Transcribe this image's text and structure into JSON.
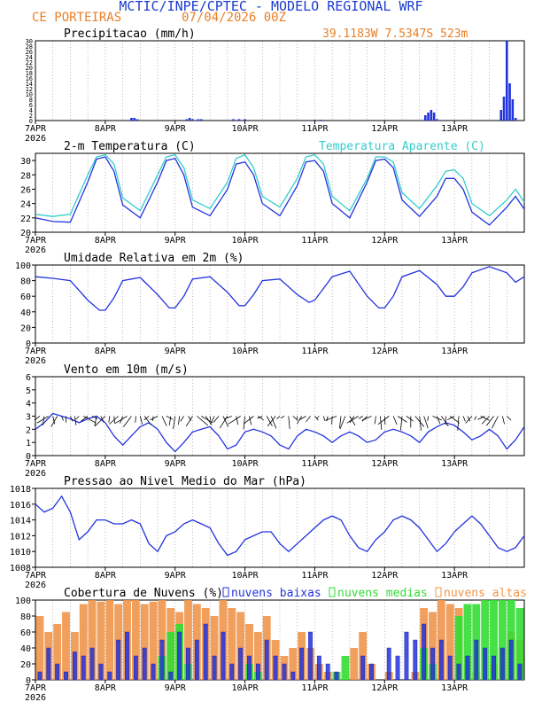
{
  "header": {
    "title": "MCTIC/INPE/CPTEC - MODELO REGIONAL WRF",
    "location": "CE PORTEIRAS",
    "run": "07/04/2026 00Z",
    "coords": "39.1183W 7.5347S 523m"
  },
  "colors": {
    "blue": "#2233dd",
    "cyan": "#33cccc",
    "orange": "#f0954a",
    "green": "#33dd33",
    "title_blue": "#1a3ccf",
    "orange_text": "#e87f28"
  },
  "x_axis": {
    "ticks": [
      "7APR",
      "8APR",
      "9APR",
      "10APR",
      "11APR",
      "12APR",
      "13APR"
    ],
    "year": "2026",
    "start": "2026-04-07 00Z",
    "end": "2026-04-14 00Z"
  },
  "chart_data": [
    {
      "type": "bar",
      "title": "Precipitacao (mm/h)",
      "ylim": [
        0,
        30
      ],
      "unit": "mm/h",
      "times_h": [
        33,
        34,
        35,
        52,
        53,
        54,
        56,
        57,
        68,
        70,
        72,
        96,
        98,
        134,
        135,
        136,
        137,
        138,
        160,
        161,
        162,
        163,
        164,
        165
      ],
      "values": [
        1,
        1,
        0.5,
        0.5,
        1,
        0.5,
        0.5,
        0.5,
        0.5,
        0.5,
        0.5,
        0.3,
        0.3,
        2,
        3,
        4,
        3,
        0.5,
        4,
        9,
        30,
        14,
        8,
        1
      ]
    },
    {
      "type": "line",
      "title": "2-m Temperatura (C)",
      "ylim": [
        20,
        31
      ],
      "yticks": [
        20,
        22,
        24,
        26,
        28,
        30
      ],
      "series": [
        {
          "name": "",
          "color": "blue",
          "x": [
            0,
            6,
            12,
            18,
            21,
            24,
            27,
            30,
            36,
            42,
            45,
            48,
            51,
            54,
            60,
            66,
            69,
            72,
            75,
            78,
            84,
            90,
            93,
            96,
            99,
            102,
            108,
            114,
            117,
            120,
            123,
            126,
            132,
            138,
            141,
            144,
            147,
            150,
            156,
            162,
            165,
            168
          ],
          "y": [
            22.0,
            21.5,
            21.4,
            27.0,
            30.2,
            30.5,
            28.5,
            23.8,
            22.0,
            27.0,
            30.0,
            30.3,
            28.0,
            23.5,
            22.3,
            26.0,
            29.5,
            29.8,
            28.0,
            24.0,
            22.3,
            26.5,
            29.8,
            30.0,
            28.5,
            24.0,
            22.0,
            27.0,
            30.0,
            30.2,
            29.0,
            24.5,
            22.2,
            25.0,
            27.5,
            27.5,
            26.0,
            22.8,
            21.0,
            23.5,
            25.0,
            23.2
          ]
        },
        {
          "name": "Temperatura Aparente (C)",
          "color": "cyan",
          "x": [
            0,
            6,
            12,
            18,
            21,
            24,
            27,
            30,
            36,
            42,
            45,
            48,
            51,
            54,
            60,
            66,
            69,
            72,
            75,
            78,
            84,
            90,
            93,
            96,
            99,
            102,
            108,
            114,
            117,
            120,
            123,
            126,
            132,
            138,
            141,
            144,
            147,
            150,
            156,
            162,
            165,
            168
          ],
          "y": [
            22.5,
            22.2,
            22.5,
            28.0,
            30.5,
            30.8,
            29.5,
            24.8,
            23.0,
            28.0,
            30.5,
            30.8,
            29.0,
            24.5,
            23.3,
            27.0,
            30.3,
            30.8,
            29.0,
            25.0,
            23.5,
            27.5,
            30.5,
            30.8,
            29.5,
            25.0,
            23.0,
            27.5,
            30.5,
            30.5,
            29.8,
            25.5,
            23.3,
            26.5,
            28.5,
            28.7,
            27.5,
            24.0,
            22.3,
            24.5,
            26.0,
            24.2
          ]
        }
      ]
    },
    {
      "type": "line",
      "title": "Umidade Relativa em 2m (%)",
      "ylim": [
        0,
        100
      ],
      "yticks": [
        0,
        20,
        40,
        60,
        80,
        100
      ],
      "series": [
        {
          "name": "",
          "color": "blue",
          "x": [
            0,
            6,
            12,
            18,
            22,
            24,
            27,
            30,
            36,
            42,
            46,
            48,
            51,
            54,
            60,
            66,
            70,
            72,
            75,
            78,
            84,
            90,
            94,
            96,
            99,
            102,
            108,
            114,
            118,
            120,
            123,
            126,
            132,
            138,
            141,
            144,
            147,
            150,
            156,
            162,
            165,
            168
          ],
          "y": [
            85,
            83,
            80,
            55,
            42,
            42,
            58,
            80,
            84,
            62,
            45,
            45,
            60,
            82,
            85,
            65,
            48,
            48,
            62,
            80,
            82,
            62,
            52,
            55,
            70,
            85,
            92,
            60,
            45,
            45,
            60,
            85,
            93,
            75,
            60,
            60,
            72,
            90,
            98,
            90,
            78,
            85
          ]
        }
      ]
    },
    {
      "type": "line",
      "title": "Vento em 10m (m/s)",
      "ylim": [
        0,
        6
      ],
      "yticks": [
        0,
        1,
        2,
        3,
        4,
        5,
        6
      ],
      "series": [
        {
          "name": "",
          "color": "blue",
          "x": [
            0,
            3,
            6,
            9,
            12,
            15,
            18,
            21,
            24,
            27,
            30,
            33,
            36,
            39,
            42,
            45,
            48,
            51,
            54,
            57,
            60,
            63,
            66,
            69,
            72,
            75,
            78,
            81,
            84,
            87,
            90,
            93,
            96,
            99,
            102,
            105,
            108,
            111,
            114,
            117,
            120,
            123,
            126,
            129,
            132,
            135,
            138,
            141,
            144,
            147,
            150,
            153,
            156,
            159,
            162,
            165,
            168
          ],
          "y": [
            2.0,
            2.5,
            3.2,
            3.0,
            2.8,
            2.5,
            2.8,
            3.0,
            2.5,
            1.5,
            0.8,
            1.5,
            2.2,
            2.5,
            2.0,
            1.0,
            0.3,
            1.0,
            1.8,
            2.0,
            2.2,
            1.5,
            0.5,
            0.8,
            1.8,
            2.0,
            1.8,
            1.5,
            0.8,
            0.5,
            1.5,
            2.0,
            1.8,
            1.5,
            1.0,
            1.5,
            1.8,
            1.5,
            1.0,
            1.2,
            1.8,
            2.0,
            1.8,
            1.5,
            1.0,
            1.8,
            2.2,
            2.5,
            2.3,
            1.8,
            1.2,
            1.5,
            2.0,
            1.5,
            0.5,
            1.2,
            2.2
          ]
        }
      ],
      "barb_level": 3
    },
    {
      "type": "line",
      "title": "Pressao ao Nivel Medio do Mar (hPa)",
      "ylim": [
        1008,
        1018
      ],
      "yticks": [
        1008,
        1010,
        1012,
        1014,
        1016,
        1018
      ],
      "series": [
        {
          "name": "",
          "color": "blue",
          "x": [
            0,
            3,
            6,
            9,
            12,
            15,
            18,
            21,
            24,
            27,
            30,
            33,
            36,
            39,
            42,
            45,
            48,
            51,
            54,
            57,
            60,
            63,
            66,
            69,
            72,
            75,
            78,
            81,
            84,
            87,
            90,
            93,
            96,
            99,
            102,
            105,
            108,
            111,
            114,
            117,
            120,
            123,
            126,
            129,
            132,
            135,
            138,
            141,
            144,
            147,
            150,
            153,
            156,
            159,
            162,
            165,
            168
          ],
          "y": [
            1016.0,
            1015.0,
            1015.5,
            1017.0,
            1015.0,
            1011.5,
            1012.5,
            1014.0,
            1014.0,
            1013.5,
            1013.5,
            1014.0,
            1013.5,
            1011.0,
            1010.0,
            1012.0,
            1012.5,
            1013.5,
            1014.0,
            1013.5,
            1013.0,
            1011.0,
            1009.5,
            1010.0,
            1011.5,
            1012.0,
            1012.5,
            1012.5,
            1011.0,
            1010.0,
            1011.0,
            1012.0,
            1013.0,
            1014.0,
            1014.5,
            1014.0,
            1012.0,
            1010.5,
            1010.0,
            1011.5,
            1012.5,
            1014.0,
            1014.5,
            1014.0,
            1013.0,
            1011.5,
            1010.0,
            1011.0,
            1012.5,
            1013.5,
            1014.5,
            1013.5,
            1012.0,
            1010.5,
            1010.0,
            1010.5,
            1012.0
          ]
        }
      ]
    },
    {
      "type": "bar",
      "title": "Cobertura de Nuvens (%)",
      "ylim": [
        0,
        100
      ],
      "yticks": [
        0,
        20,
        40,
        60,
        80,
        100
      ],
      "legend": [
        "nuvens baixas",
        "nuvens medias",
        "nuvens altas"
      ],
      "hours": [
        0,
        3,
        6,
        9,
        12,
        15,
        18,
        21,
        24,
        27,
        30,
        33,
        36,
        39,
        42,
        45,
        48,
        51,
        54,
        57,
        60,
        63,
        66,
        69,
        72,
        75,
        78,
        81,
        84,
        87,
        90,
        93,
        96,
        99,
        102,
        105,
        108,
        111,
        114,
        117,
        120,
        123,
        126,
        129,
        132,
        135,
        138,
        141,
        144,
        147,
        150,
        153,
        156,
        159,
        162,
        165
      ],
      "series": [
        {
          "name": "nuvens altas",
          "color": "orange",
          "values": [
            80,
            60,
            70,
            85,
            60,
            95,
            100,
            98,
            100,
            95,
            100,
            100,
            95,
            98,
            100,
            90,
            85,
            100,
            95,
            90,
            80,
            100,
            90,
            85,
            70,
            60,
            80,
            50,
            30,
            40,
            60,
            40,
            20,
            10,
            0,
            0,
            40,
            60,
            20,
            0,
            10,
            0,
            0,
            10,
            90,
            85,
            100,
            95,
            90,
            30,
            10,
            0,
            20,
            40,
            60,
            50
          ]
        },
        {
          "name": "nuvens medias",
          "color": "green",
          "values": [
            0,
            0,
            0,
            0,
            0,
            0,
            0,
            0,
            0,
            0,
            0,
            0,
            0,
            0,
            30,
            60,
            70,
            20,
            0,
            0,
            0,
            0,
            0,
            0,
            20,
            10,
            0,
            0,
            0,
            0,
            0,
            0,
            0,
            0,
            10,
            30,
            0,
            0,
            0,
            0,
            0,
            0,
            0,
            0,
            40,
            20,
            0,
            0,
            80,
            95,
            95,
            100,
            100,
            100,
            100,
            90
          ]
        },
        {
          "name": "nuvens baixas",
          "color": "blue",
          "values": [
            10,
            40,
            20,
            10,
            35,
            30,
            40,
            20,
            10,
            50,
            60,
            30,
            40,
            20,
            50,
            10,
            60,
            40,
            50,
            70,
            30,
            60,
            20,
            40,
            30,
            20,
            50,
            30,
            20,
            10,
            40,
            60,
            30,
            20,
            10,
            0,
            0,
            30,
            20,
            0,
            40,
            30,
            60,
            50,
            70,
            40,
            50,
            30,
            20,
            30,
            50,
            40,
            30,
            40,
            50,
            20
          ]
        }
      ]
    }
  ]
}
